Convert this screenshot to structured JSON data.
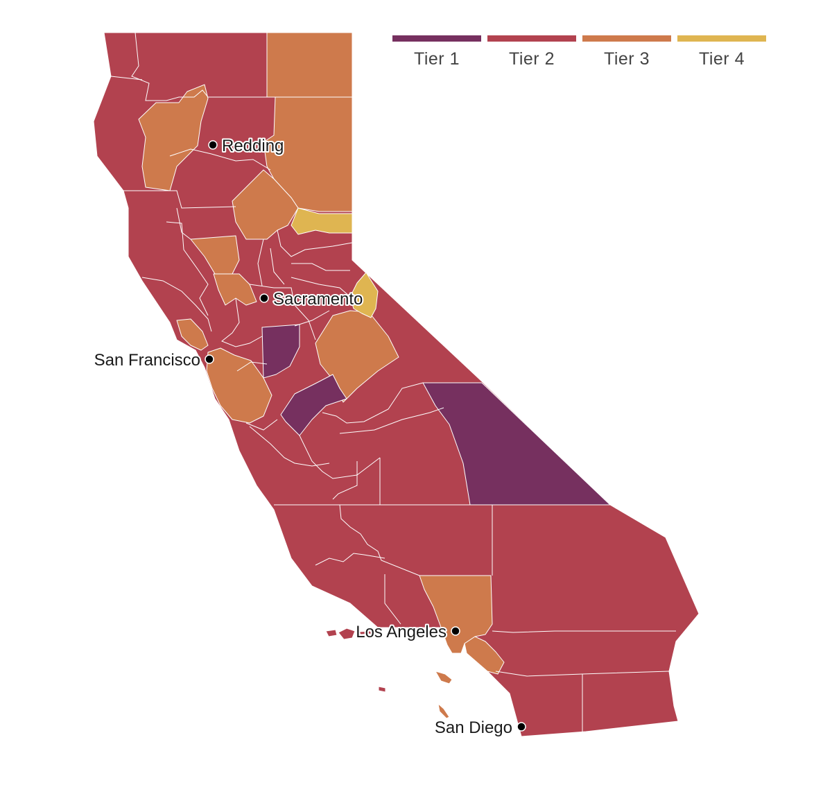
{
  "colors": {
    "tier1": "#76305f",
    "tier2": "#b2424f",
    "tier3": "#ce7a4c",
    "tier4": "#dfb551"
  },
  "legend": [
    {
      "label": "Tier 1",
      "tier": "tier1"
    },
    {
      "label": "Tier 2",
      "tier": "tier2"
    },
    {
      "label": "Tier 3",
      "tier": "tier3"
    },
    {
      "label": "Tier 4",
      "tier": "tier4"
    }
  ],
  "cities": [
    {
      "name": "Redding"
    },
    {
      "name": "Sacramento"
    },
    {
      "name": "San Francisco"
    },
    {
      "name": "Los Angeles"
    },
    {
      "name": "San Diego"
    }
  ]
}
